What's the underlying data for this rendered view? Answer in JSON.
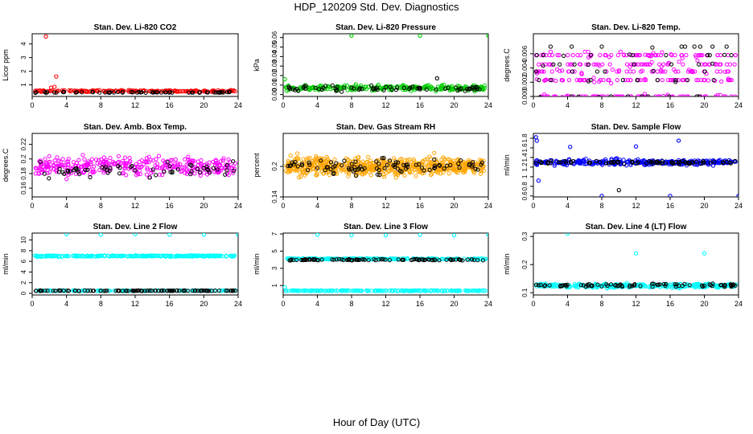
{
  "page": {
    "title": "HDP_120209  Std. Dev. Diagnostics",
    "x_axis_label": "Hour of Day (UTC)"
  },
  "colors": {
    "co2": "#ff0000",
    "pressure": "#00cc00",
    "magenta": "#ff00ff",
    "orange": "#ffa500",
    "blue": "#0000ff",
    "cyan": "#00ffff",
    "black": "#000000"
  },
  "chart_data": [
    {
      "type": "scatter",
      "title": "Stan. Dev. Li-820 CO2",
      "ylabel": "Licor ppm",
      "xlim": [
        0,
        24
      ],
      "ylim": [
        0.15,
        4.75
      ],
      "xticks": [
        "0",
        "4",
        "8",
        "12",
        "16",
        "20",
        "24"
      ],
      "yticks": [
        1,
        2,
        3,
        4
      ],
      "series": [
        {
          "color": "co2",
          "base": 0.55,
          "spread": 0.1,
          "count": 180,
          "outliers": [
            [
              1.6,
              4.55
            ],
            [
              2.8,
              1.62
            ],
            [
              2.6,
              0.85
            ],
            [
              2.2,
              0.8
            ]
          ]
        },
        {
          "color": "black",
          "base": 0.45,
          "spread": 0.07,
          "count": 60,
          "outliers": []
        }
      ]
    },
    {
      "type": "scatter",
      "title": "Stan. Dev. Li-820 Pressure",
      "ylabel": "kPa",
      "xlim": [
        0,
        24
      ],
      "ylim": [
        -0.002,
        0.064
      ],
      "xticks": [
        "0",
        "4",
        "8",
        "12",
        "16",
        "20",
        "24"
      ],
      "yticks": [
        0.0,
        0.01,
        0.02,
        0.03,
        0.04,
        0.05,
        0.06
      ],
      "series": [
        {
          "color": "pressure",
          "base": 0.007,
          "spread": 0.005,
          "count": 260,
          "outliers": [
            [
              8.0,
              0.062
            ],
            [
              16.0,
              0.062
            ],
            [
              24.0,
              0.062
            ],
            [
              0.2,
              0.016
            ]
          ]
        },
        {
          "color": "black",
          "base": 0.006,
          "spread": 0.005,
          "count": 70,
          "outliers": [
            [
              18.0,
              0.017
            ]
          ]
        }
      ]
    },
    {
      "type": "scatter",
      "title": "Stan. Dev. Li-820 Temp.",
      "ylabel": "degrees.C",
      "xlim": [
        0,
        24
      ],
      "ylim": [
        0.0,
        0.0088
      ],
      "xticks": [
        "0",
        "4",
        "8",
        "12",
        "16",
        "20",
        "24"
      ],
      "yticks": [
        0.0,
        0.002,
        0.004,
        0.006
      ],
      "series": [
        {
          "color": "magenta",
          "base": 0.004,
          "spread": 0.0025,
          "count": 320,
          "levels": [
            0.0,
            0.0023,
            0.0035,
            0.0045,
            0.0058
          ],
          "outliers": []
        },
        {
          "color": "black",
          "base": 0.004,
          "spread": 0.0022,
          "count": 60,
          "levels": [
            0.0,
            0.0023,
            0.0035,
            0.0045,
            0.0058,
            0.007
          ],
          "outliers": []
        }
      ]
    },
    {
      "type": "scatter",
      "title": "Stan. Dev. Amb. Box Temp.",
      "ylabel": "degrees.C",
      "xlim": [
        0,
        24
      ],
      "ylim": [
        0.148,
        0.235
      ],
      "xticks": [
        "0",
        "4",
        "8",
        "12",
        "16",
        "20",
        "24"
      ],
      "yticks": [
        0.16,
        0.18,
        0.2,
        0.22
      ],
      "series": [
        {
          "color": "magenta",
          "base": 0.19,
          "spread": 0.022,
          "count": 330,
          "outliers": []
        },
        {
          "color": "black",
          "base": 0.185,
          "spread": 0.018,
          "count": 60,
          "outliers": []
        }
      ]
    },
    {
      "type": "scatter",
      "title": "Stan. Dev. Gas Stream RH",
      "ylabel": "percent",
      "xlim": [
        0,
        24
      ],
      "ylim": [
        0.14,
        0.265
      ],
      "xticks": [
        "0",
        "4",
        "8",
        "12",
        "16",
        "20",
        "24"
      ],
      "yticks": [
        0.14,
        0.2
      ],
      "series": [
        {
          "color": "orange",
          "base": 0.2,
          "spread": 0.03,
          "count": 600,
          "outliers": []
        },
        {
          "color": "black",
          "base": 0.2,
          "spread": 0.025,
          "count": 90,
          "outliers": []
        }
      ]
    },
    {
      "type": "scatter",
      "title": "Stan. Dev. Sample Flow",
      "ylabel": "ml/min",
      "xlim": [
        0,
        24
      ],
      "ylim": [
        0.58,
        1.9
      ],
      "xticks": [
        "0",
        "4",
        "8",
        "12",
        "16",
        "20",
        "24"
      ],
      "yticks": [
        0.6,
        0.8,
        1.0,
        1.2,
        1.4,
        1.6,
        1.8
      ],
      "series": [
        {
          "color": "blue",
          "base": 1.3,
          "spread": 0.1,
          "count": 300,
          "outliers": [
            [
              0.3,
              1.82
            ],
            [
              0.4,
              1.75
            ],
            [
              0.6,
              0.92
            ],
            [
              8.0,
              0.6
            ],
            [
              16.0,
              0.6
            ],
            [
              24.0,
              0.6
            ],
            [
              4.3,
              1.62
            ],
            [
              12.0,
              1.63
            ],
            [
              17.0,
              1.75
            ]
          ]
        },
        {
          "color": "black",
          "base": 1.3,
          "spread": 0.06,
          "count": 80,
          "outliers": [
            [
              10.0,
              0.72
            ]
          ]
        }
      ]
    },
    {
      "type": "scatter",
      "title": "Stan. Dev. Line 2 Flow",
      "ylabel": "ml/min",
      "xlim": [
        0,
        24
      ],
      "ylim": [
        -0.3,
        11.3
      ],
      "xticks": [
        "0",
        "4",
        "8",
        "12",
        "16",
        "20",
        "24"
      ],
      "yticks": [
        0,
        2,
        4,
        6,
        8,
        10
      ],
      "series": [
        {
          "color": "cyan",
          "base": 7.0,
          "spread": 0.2,
          "count": 300,
          "outliers": [
            [
              4.0,
              11.1
            ],
            [
              8.0,
              11.0
            ],
            [
              12.0,
              11.1
            ],
            [
              16.0,
              11.0
            ],
            [
              20.0,
              11.0
            ],
            [
              24.0,
              11.0
            ]
          ]
        },
        {
          "color": "cyan",
          "base": 0.5,
          "spread": 0.1,
          "count": 150,
          "outliers": []
        },
        {
          "color": "black",
          "base": 0.5,
          "spread": 0.08,
          "count": 100,
          "outliers": []
        }
      ]
    },
    {
      "type": "scatter",
      "title": "Stan. Dev. Line 3 Flow",
      "ylabel": "ml/min",
      "xlim": [
        0,
        24
      ],
      "ylim": [
        -0.1,
        7.1
      ],
      "xticks": [
        "0",
        "4",
        "8",
        "12",
        "16",
        "20",
        "24"
      ],
      "yticks": [
        1,
        3,
        5,
        7
      ],
      "series": [
        {
          "color": "cyan",
          "base": 4.1,
          "spread": 0.12,
          "count": 220,
          "outliers": [
            [
              4.0,
              6.9
            ],
            [
              8.0,
              6.85
            ],
            [
              12.0,
              6.85
            ],
            [
              16.0,
              6.9
            ],
            [
              20.0,
              6.85
            ],
            [
              24.0,
              6.9
            ],
            [
              0.2,
              0.8
            ]
          ]
        },
        {
          "color": "cyan",
          "base": 0.4,
          "spread": 0.08,
          "count": 200,
          "outliers": []
        },
        {
          "color": "black",
          "base": 4.0,
          "spread": 0.12,
          "count": 100,
          "outliers": []
        }
      ]
    },
    {
      "type": "scatter",
      "title": "Stan. Dev. Line 4 (LT) Flow",
      "ylabel": "ml/min",
      "xlim": [
        0,
        24
      ],
      "ylim": [
        0.092,
        0.312
      ],
      "xticks": [
        "0",
        "4",
        "8",
        "12",
        "16",
        "20",
        "24"
      ],
      "yticks": [
        0.1,
        0.2,
        0.3
      ],
      "series": [
        {
          "color": "cyan",
          "base": 0.125,
          "spread": 0.012,
          "count": 330,
          "outliers": [
            [
              4.0,
              0.31
            ],
            [
              12.0,
              0.24
            ],
            [
              20.0,
              0.24
            ]
          ]
        },
        {
          "color": "black",
          "base": 0.127,
          "spread": 0.01,
          "count": 80,
          "outliers": []
        }
      ]
    }
  ]
}
